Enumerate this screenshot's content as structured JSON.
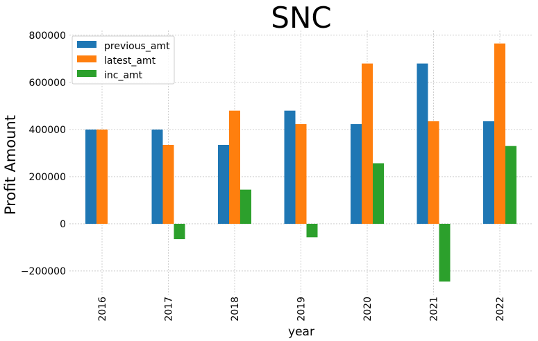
{
  "chart_data": {
    "type": "bar",
    "title": "SNC",
    "xlabel": "year",
    "ylabel": "Profit Amount",
    "categories": [
      "2016",
      "2017",
      "2018",
      "2019",
      "2020",
      "2021",
      "2022"
    ],
    "series": [
      {
        "name": "previous_amt",
        "color": "#1f77b4",
        "values": [
          400000,
          400000,
          335000,
          480000,
          423000,
          680000,
          435000
        ]
      },
      {
        "name": "latest_amt",
        "color": "#ff7f0e",
        "values": [
          400000,
          335000,
          480000,
          423000,
          680000,
          435000,
          765000
        ]
      },
      {
        "name": "inc_amt",
        "color": "#2ca02c",
        "values": [
          0,
          -65000,
          145000,
          -57000,
          257000,
          -245000,
          330000
        ]
      }
    ],
    "ylim": [
      -300000,
      820000
    ],
    "yticks": [
      -200000,
      0,
      200000,
      400000,
      600000,
      800000
    ],
    "ytick_labels": [
      "−200000",
      "0",
      "200000",
      "400000",
      "600000",
      "800000"
    ],
    "grid": true,
    "legend_position": "top-left"
  }
}
